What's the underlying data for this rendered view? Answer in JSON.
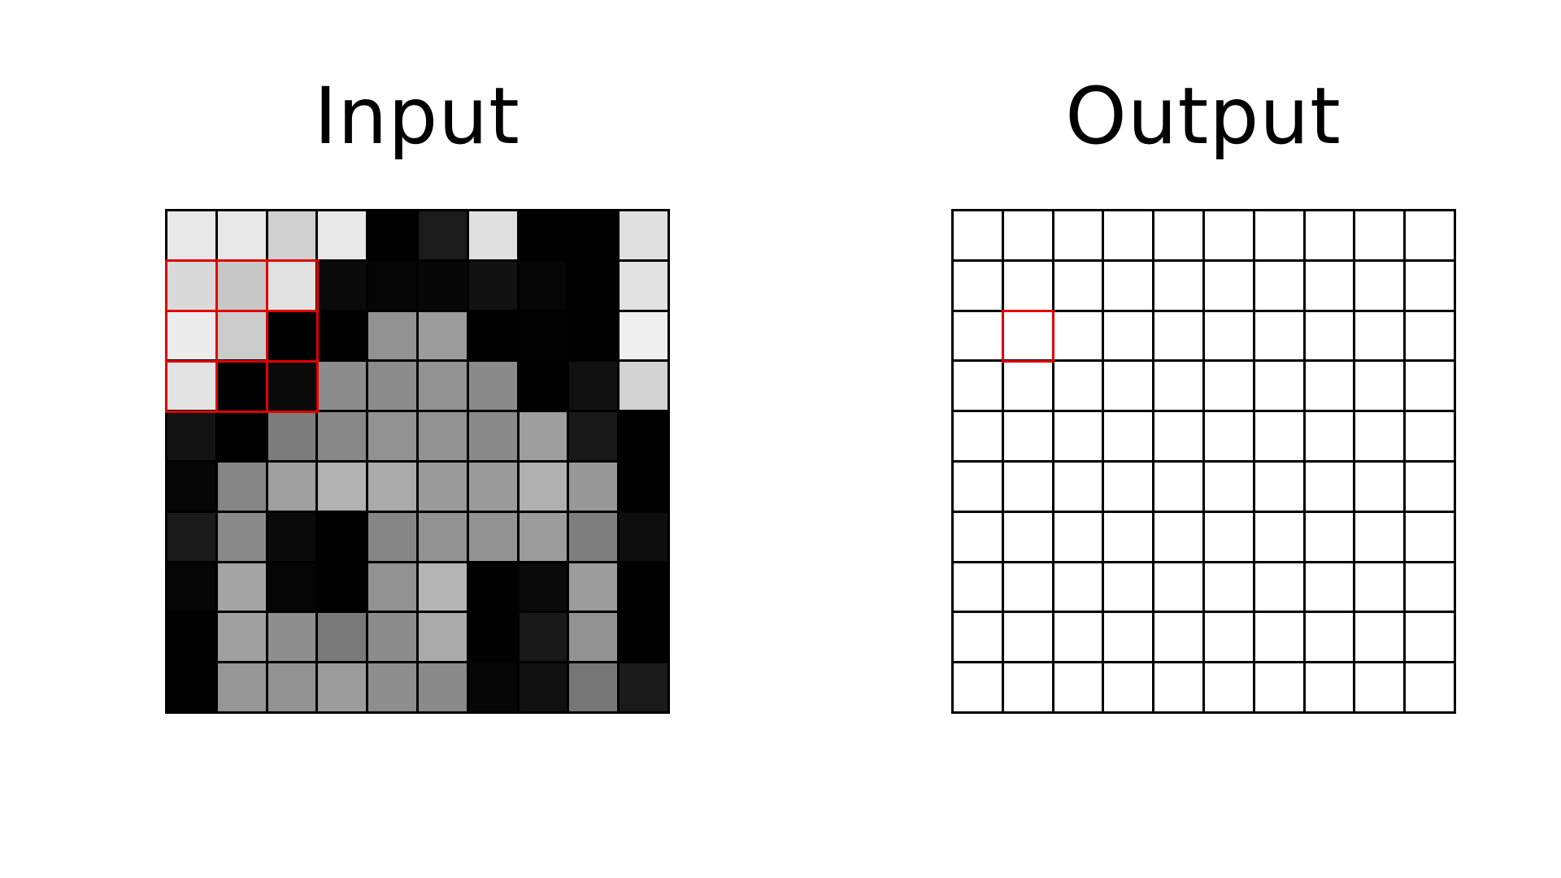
{
  "titles": {
    "input": "Input",
    "output": "Output"
  },
  "colors": {
    "grid_line": "#000000",
    "highlight": "#e00000",
    "output_cell": "#ffffff"
  },
  "grid_size": 10,
  "kernel": {
    "size": 3,
    "input_top_left": [
      1,
      0
    ],
    "output_cell": [
      2,
      1
    ]
  },
  "input_cells": [
    [
      "#e8e8e8",
      "#e8e8e8",
      "#d0d0d0",
      "#e8e8e8",
      "#000000",
      "#1b1b1b",
      "#e0e0e0",
      "#000000",
      "#000000",
      "#e0e0e0"
    ],
    [
      "#dadada",
      "#c8c8c8",
      "#e2e2e2",
      "#0a0a0a",
      "#050505",
      "#070707",
      "#121212",
      "#050505",
      "#000000",
      "#e2e2e2"
    ],
    [
      "#ececec",
      "#cccccc",
      "#000000",
      "#000000",
      "#929292",
      "#9c9c9c",
      "#000000",
      "#020202",
      "#000000",
      "#efefef"
    ],
    [
      "#e4e4e4",
      "#000000",
      "#0a0a0a",
      "#8c8c8c",
      "#8c8c8c",
      "#929292",
      "#8a8a8a",
      "#000000",
      "#101010",
      "#d2d2d2"
    ],
    [
      "#131313",
      "#000000",
      "#7c7c7c",
      "#888888",
      "#929292",
      "#929292",
      "#8a8a8a",
      "#9e9e9e",
      "#181818",
      "#000000"
    ],
    [
      "#050505",
      "#868686",
      "#a0a0a0",
      "#b2b2b2",
      "#aaaaaa",
      "#9a9a9a",
      "#9a9a9a",
      "#b0b0b0",
      "#989898",
      "#000000"
    ],
    [
      "#1a1a1a",
      "#8a8a8a",
      "#0a0a0a",
      "#000000",
      "#868686",
      "#929292",
      "#929292",
      "#9c9c9c",
      "#7e7e7e",
      "#0e0e0e"
    ],
    [
      "#050505",
      "#a4a4a4",
      "#050505",
      "#000000",
      "#929292",
      "#b4b4b4",
      "#000000",
      "#0a0a0a",
      "#9c9c9c",
      "#000000"
    ],
    [
      "#000000",
      "#a0a0a0",
      "#8e8e8e",
      "#7a7a7a",
      "#8c8c8c",
      "#aaaaaa",
      "#000000",
      "#181818",
      "#929292",
      "#000000"
    ],
    [
      "#000000",
      "#969696",
      "#929292",
      "#9c9c9c",
      "#8e8e8e",
      "#8a8a8a",
      "#050505",
      "#101010",
      "#767676",
      "#1a1a1a"
    ]
  ]
}
